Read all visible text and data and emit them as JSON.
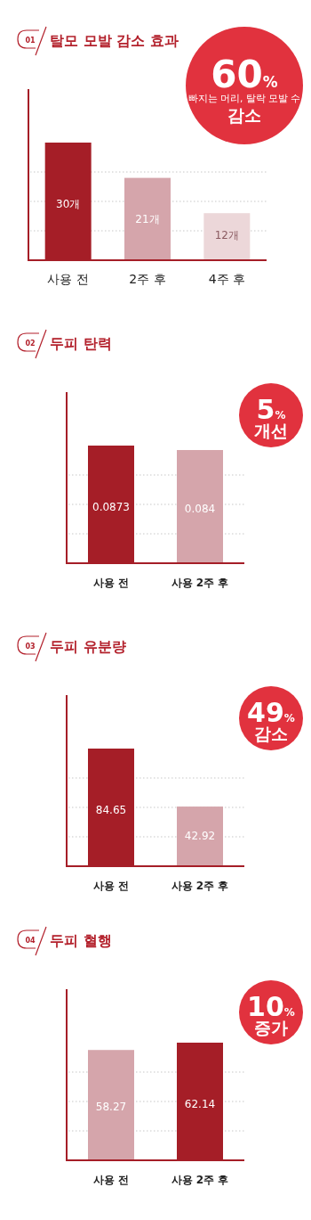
{
  "chart_data": [
    {
      "type": "bar",
      "title": "탈모 모발 감소 효과",
      "categories": [
        "사용 전",
        "2주 후",
        "4주 후"
      ],
      "values": [
        30,
        21,
        12
      ],
      "colors": [
        "#a51e27",
        "#d5a5ab",
        "#ecd7d9"
      ],
      "value_labels": [
        "30개",
        "21개",
        "12개"
      ],
      "grid": true,
      "annotations": [
        "01",
        "60%",
        "빠지는 머리, 탈락 모발 수",
        "감소"
      ]
    },
    {
      "type": "bar",
      "title": "두피 탄력",
      "categories": [
        "사용 전",
        "사용 2주 후"
      ],
      "values": [
        0.0873,
        0.084
      ],
      "colors": [
        "#a51e27",
        "#d5a5ab"
      ],
      "data_labels": true,
      "grid": true,
      "annotations": [
        "02",
        "5%",
        "개선"
      ]
    },
    {
      "type": "bar",
      "title": "두피 유분량",
      "categories": [
        "사용 전",
        "사용 2주 후"
      ],
      "values": [
        84.65,
        42.92
      ],
      "colors": [
        "#a51e27",
        "#d5a5ab"
      ],
      "data_labels": true,
      "grid": true,
      "annotations": [
        "03",
        "49%",
        "감소"
      ]
    },
    {
      "type": "bar",
      "title": "두피 혈행",
      "categories": [
        "사용 전",
        "사용 2주 후"
      ],
      "values": [
        58.27,
        62.14
      ],
      "colors": [
        "#d5a5ab",
        "#a51e27"
      ],
      "data_labels": true,
      "grid": true,
      "annotations": [
        "04",
        "10%",
        "증가"
      ]
    }
  ]
}
